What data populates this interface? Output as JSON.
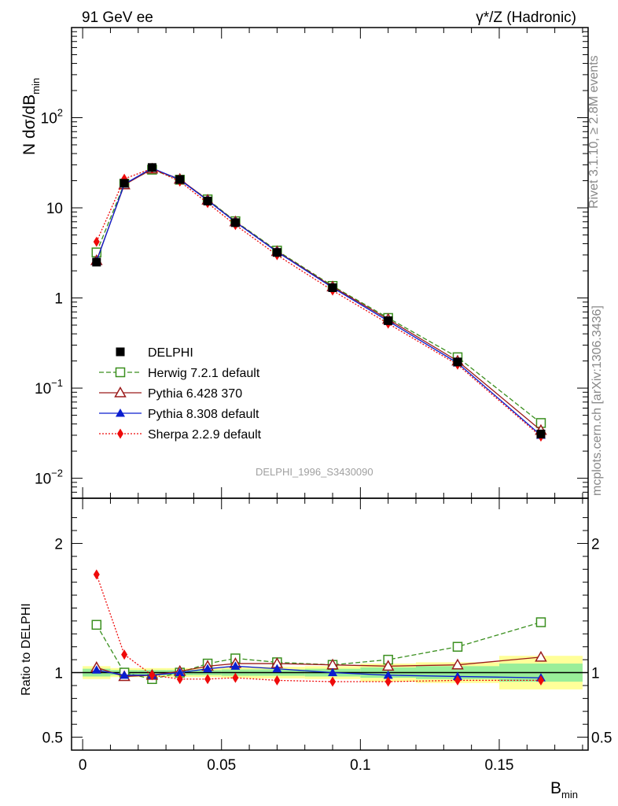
{
  "header": {
    "left": "91 GeV ee",
    "right": "γ*/Z (Hadronic)"
  },
  "side": {
    "rivet": "Rivet 3.1.10, ≥ 2.8M events",
    "mcplots": "mcplots.cern.ch [arXiv:1306.3436]"
  },
  "watermark": "DELPHI_1996_S3430090",
  "colors": {
    "data": "#000000",
    "herwig": "#3a8f1e",
    "pythia6": "#9b1b1b",
    "pythia8": "#0a1ecf",
    "sherpa": "#ee0a0a",
    "band_inner": "#99ee99",
    "band_outer": "#ffff99"
  },
  "chart_data": [
    {
      "type": "line",
      "panel": "main",
      "ylabel_main": "N dσ/dB",
      "ylabel_sub": "min",
      "yscale": "log",
      "ylim": [
        0.006,
        1000
      ],
      "xlim": [
        -0.004,
        0.182
      ],
      "yticks": [
        {
          "value": 0.01,
          "base": "10",
          "exp": "−2"
        },
        {
          "value": 0.1,
          "base": "10",
          "exp": "−1"
        },
        {
          "value": 1,
          "base": "1",
          "exp": ""
        },
        {
          "value": 10,
          "base": "10",
          "exp": ""
        },
        {
          "value": 100,
          "base": "10",
          "exp": "2"
        }
      ],
      "x": [
        0.005,
        0.015,
        0.025,
        0.035,
        0.045,
        0.055,
        0.07,
        0.09,
        0.11,
        0.135,
        0.165
      ],
      "series": [
        {
          "name": "DELPHI",
          "key": "data",
          "marker": "square-filled",
          "line": "none",
          "values": [
            2.5,
            18.7,
            28.0,
            20.6,
            11.9,
            6.85,
            3.2,
            1.3,
            0.56,
            0.195,
            0.031
          ]
        },
        {
          "name": "Herwig 7.2.1 default",
          "key": "herwig",
          "marker": "square-open",
          "line": "dashed",
          "values": [
            3.2,
            18.5,
            26.5,
            20.5,
            12.4,
            7.1,
            3.35,
            1.36,
            0.6,
            0.22,
            0.041
          ]
        },
        {
          "name": "Pythia 6.428 370",
          "key": "pythia6",
          "marker": "triangle-open",
          "line": "solid",
          "values": [
            2.6,
            18.0,
            27.0,
            20.8,
            12.2,
            7.0,
            3.28,
            1.33,
            0.58,
            0.2,
            0.034
          ]
        },
        {
          "name": "Pythia 8.308 default",
          "key": "pythia8",
          "marker": "triangle-filled",
          "line": "solid",
          "values": [
            2.55,
            18.3,
            27.6,
            20.5,
            12.1,
            6.95,
            3.25,
            1.3,
            0.555,
            0.19,
            0.03
          ]
        },
        {
          "name": "Sherpa 2.2.9 default",
          "key": "sherpa",
          "marker": "diamond-filled",
          "line": "dotted",
          "values": [
            4.2,
            21.0,
            27.3,
            19.6,
            11.3,
            6.45,
            2.99,
            1.21,
            0.52,
            0.182,
            0.029
          ]
        }
      ]
    },
    {
      "type": "line",
      "panel": "ratio",
      "ylabel": "Ratio to DELPHI",
      "ylim": [
        0.4,
        2.35
      ],
      "xlim": [
        -0.004,
        0.182
      ],
      "xlabel_main": "B",
      "xlabel_sub": "min",
      "yticks": [
        0.5,
        1,
        2
      ],
      "ytick_labels": [
        "0.5",
        "1",
        "2"
      ],
      "xticks": [
        0,
        0.05,
        0.1,
        0.15
      ],
      "xtick_labels": [
        "0",
        "0.05",
        "0.1",
        "0.15"
      ],
      "x": [
        0.005,
        0.015,
        0.025,
        0.035,
        0.045,
        0.055,
        0.07,
        0.09,
        0.11,
        0.135,
        0.165
      ],
      "bins": [
        [
          0,
          0.01
        ],
        [
          0.01,
          0.02
        ],
        [
          0.02,
          0.03
        ],
        [
          0.03,
          0.04
        ],
        [
          0.04,
          0.05
        ],
        [
          0.05,
          0.06
        ],
        [
          0.06,
          0.08
        ],
        [
          0.08,
          0.1
        ],
        [
          0.1,
          0.12
        ],
        [
          0.12,
          0.15
        ],
        [
          0.15,
          0.18
        ]
      ],
      "band_inner": [
        0.03,
        0.02,
        0.02,
        0.02,
        0.02,
        0.025,
        0.025,
        0.03,
        0.04,
        0.05,
        0.07
      ],
      "band_outer": [
        0.05,
        0.035,
        0.035,
        0.035,
        0.035,
        0.04,
        0.045,
        0.05,
        0.07,
        0.08,
        0.13
      ],
      "series": [
        {
          "key": "herwig",
          "marker": "square-open",
          "line": "dashed",
          "values": [
            1.37,
            1.0,
            0.95,
            1.0,
            1.07,
            1.11,
            1.08,
            1.06,
            1.1,
            1.2,
            1.39
          ]
        },
        {
          "key": "pythia6",
          "marker": "triangle-open",
          "line": "solid",
          "values": [
            1.04,
            0.97,
            0.98,
            1.01,
            1.05,
            1.07,
            1.07,
            1.06,
            1.05,
            1.06,
            1.12
          ]
        },
        {
          "key": "pythia8",
          "marker": "triangle-filled",
          "line": "solid",
          "values": [
            1.02,
            0.98,
            0.98,
            1.0,
            1.03,
            1.05,
            1.03,
            1.0,
            0.98,
            0.97,
            0.96
          ]
        },
        {
          "key": "sherpa",
          "marker": "diamond-filled",
          "line": "dotted",
          "values": [
            1.76,
            1.14,
            0.98,
            0.95,
            0.95,
            0.96,
            0.94,
            0.93,
            0.93,
            0.94,
            0.94
          ]
        }
      ]
    }
  ]
}
